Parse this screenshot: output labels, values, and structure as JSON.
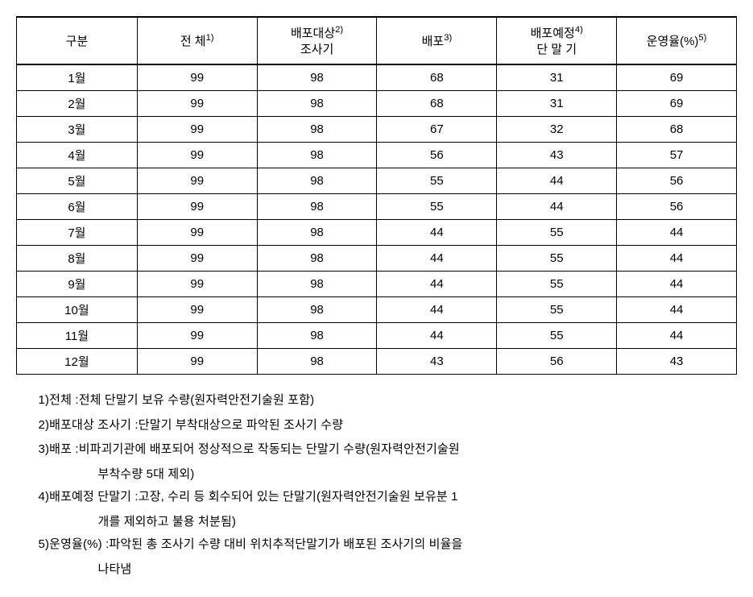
{
  "table": {
    "headers": {
      "c0": "구분",
      "c1_text": "전 체",
      "c1_sup": "1)",
      "c2_line1": "배포대상",
      "c2_sup": "2)",
      "c2_line2": "조사기",
      "c3_text": "배포",
      "c3_sup": "3)",
      "c4_line1": "배포예정",
      "c4_sup": "4)",
      "c4_line2": "단 말 기",
      "c5_text": "운영율(%)",
      "c5_sup": "5)"
    },
    "rows": [
      {
        "m": "1월",
        "a": "99",
        "b": "98",
        "c": "68",
        "d": "31",
        "e": "69"
      },
      {
        "m": "2월",
        "a": "99",
        "b": "98",
        "c": "68",
        "d": "31",
        "e": "69"
      },
      {
        "m": "3월",
        "a": "99",
        "b": "98",
        "c": "67",
        "d": "32",
        "e": "68"
      },
      {
        "m": "4월",
        "a": "99",
        "b": "98",
        "c": "56",
        "d": "43",
        "e": "57"
      },
      {
        "m": "5월",
        "a": "99",
        "b": "98",
        "c": "55",
        "d": "44",
        "e": "56"
      },
      {
        "m": "6월",
        "a": "99",
        "b": "98",
        "c": "55",
        "d": "44",
        "e": "56"
      },
      {
        "m": "7월",
        "a": "99",
        "b": "98",
        "c": "44",
        "d": "55",
        "e": "44"
      },
      {
        "m": "8월",
        "a": "99",
        "b": "98",
        "c": "44",
        "d": "55",
        "e": "44"
      },
      {
        "m": "9월",
        "a": "99",
        "b": "98",
        "c": "44",
        "d": "55",
        "e": "44"
      },
      {
        "m": "10월",
        "a": "99",
        "b": "98",
        "c": "44",
        "d": "55",
        "e": "44"
      },
      {
        "m": "11월",
        "a": "99",
        "b": "98",
        "c": "44",
        "d": "55",
        "e": "44"
      },
      {
        "m": "12월",
        "a": "99",
        "b": "98",
        "c": "43",
        "d": "56",
        "e": "43"
      }
    ]
  },
  "notes": {
    "n1_label": "1)전체 : ",
    "n1_body": "전체 단말기 보유 수량(원자력안전기술원 포함)",
    "n2_label": "2)배포대상 조사기 : ",
    "n2_body": "단말기 부착대상으로 파악된 조사기 수량",
    "n3_label": "3)배포 : ",
    "n3_body": "비파괴기관에 배포되어 정상적으로 작동되는 단말기 수량(원자력안전기술원",
    "n3_cont": "부착수량 5대 제외)",
    "n4_label": "4)배포예정 단말기 : ",
    "n4_body": "고장, 수리 등 회수되어 있는 단말기(원자력안전기술원 보유분 1",
    "n4_cont": "개를 제외하고 불용 처분됨)",
    "n5_label": "5)운영율(%) : ",
    "n5_body": "파악된 총 조사기 수량 대비 위치추적단말기가 배포된 조사기의 비율을",
    "n5_cont": "나타냄"
  }
}
